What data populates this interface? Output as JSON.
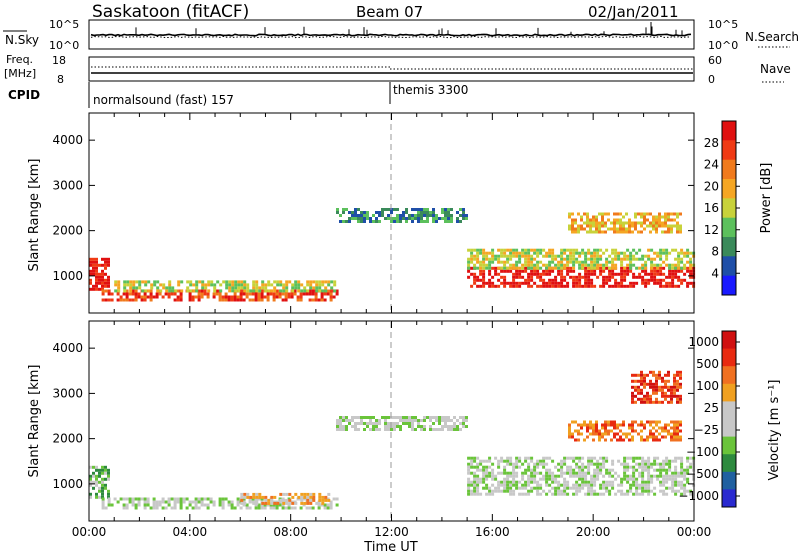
{
  "header": {
    "station": "Saskatoon (fitACF)",
    "beam": "Beam 07",
    "date": "02/Jan/2011"
  },
  "top_panels": {
    "nsky_label": "N.Sky",
    "nsky_tick_top": "10^5",
    "nsky_tick_bottom": "10^0",
    "nsearch_label": "N.Search",
    "nsearch_tick_top": "10^5",
    "nsearch_tick_bottom": "10^0",
    "freq_label_line1": "Freq.",
    "freq_label_line2": "[MHz]",
    "freq_tick_top": "18",
    "freq_tick_bottom": "8",
    "nave_label": "Nave",
    "nave_tick_top": "60",
    "nave_tick_bottom": "0",
    "cpid_label": "CPID",
    "cpid_1": "normalsound (fast) 157",
    "cpid_2": "themis 3300"
  },
  "colors": {
    "power_scale": [
      "#1a1aff",
      "#1f4fa8",
      "#3a8a5a",
      "#5cc05c",
      "#c8d23a",
      "#f5a623",
      "#f07a1c",
      "#f03a14",
      "#e01010"
    ],
    "velocity_scale": [
      "#2a2ad0",
      "#2060a0",
      "#2d8a3e",
      "#6ac43a",
      "#c8c8c8",
      "#c8c8c8",
      "#f0a020",
      "#f07020",
      "#e82a10",
      "#d01010"
    ],
    "ground_grey": "#c8c8c8"
  },
  "chart_data": [
    {
      "type": "heatmap",
      "title": "Power",
      "xlabel": "Time UT",
      "ylabel": "Slant Range [km]",
      "x_ticks": [
        "00:00",
        "04:00",
        "08:00",
        "12:00",
        "16:00",
        "20:00",
        "00:00"
      ],
      "y_ticks": [
        "1000",
        "2000",
        "3000",
        "4000"
      ],
      "ylim": [
        180,
        4600
      ],
      "colorbar_label": "Power [dB]",
      "colorbar_ticks": [
        "4",
        "8",
        "12",
        "16",
        "20",
        "24",
        "28"
      ],
      "scatter_regions": [
        {
          "t_start": 0.0,
          "t_end": 0.8,
          "r_start": 700,
          "r_end": 1400,
          "level": 8
        },
        {
          "t_start": 0.5,
          "t_end": 9.8,
          "r_start": 450,
          "r_end": 700,
          "level": 7
        },
        {
          "t_start": 1.0,
          "t_end": 9.8,
          "r_start": 700,
          "r_end": 900,
          "level": 4
        },
        {
          "t_start": 9.8,
          "t_end": 15.0,
          "r_start": 2200,
          "r_end": 2500,
          "level": 2
        },
        {
          "t_start": 15.0,
          "t_end": 24.0,
          "r_start": 800,
          "r_end": 1200,
          "level": 8
        },
        {
          "t_start": 15.0,
          "t_end": 24.0,
          "r_start": 1200,
          "r_end": 1600,
          "level": 4
        },
        {
          "t_start": 19.0,
          "t_end": 23.5,
          "r_start": 2000,
          "r_end": 2400,
          "level": 5
        }
      ]
    },
    {
      "type": "heatmap",
      "title": "Velocity",
      "xlabel": "Time UT",
      "ylabel": "Slant Range [km]",
      "x_ticks": [
        "00:00",
        "04:00",
        "08:00",
        "12:00",
        "16:00",
        "20:00",
        "00:00"
      ],
      "y_ticks": [
        "1000",
        "2000",
        "3000",
        "4000"
      ],
      "ylim": [
        180,
        4600
      ],
      "colorbar_label": "Velocity [m s⁻¹]",
      "colorbar_ticks": [
        "1000",
        "500",
        "100",
        "25",
        "−25",
        "−100",
        "−500",
        "−1000"
      ],
      "scatter_regions": [
        {
          "t_start": 0.0,
          "t_end": 0.8,
          "r_start": 700,
          "r_end": 1400,
          "level": 3
        },
        {
          "t_start": 0.5,
          "t_end": 9.8,
          "r_start": 450,
          "r_end": 700,
          "level": 4
        },
        {
          "t_start": 6.0,
          "t_end": 9.5,
          "r_start": 550,
          "r_end": 800,
          "level": 6
        },
        {
          "t_start": 9.8,
          "t_end": 15.0,
          "r_start": 2200,
          "r_end": 2500,
          "level": 4
        },
        {
          "t_start": 15.0,
          "t_end": 24.0,
          "r_start": 800,
          "r_end": 1600,
          "level": 4
        },
        {
          "t_start": 19.0,
          "t_end": 23.5,
          "r_start": 2000,
          "r_end": 2400,
          "level": 7
        },
        {
          "t_start": 21.5,
          "t_end": 23.5,
          "r_start": 2800,
          "r_end": 3500,
          "level": 8
        }
      ]
    }
  ]
}
